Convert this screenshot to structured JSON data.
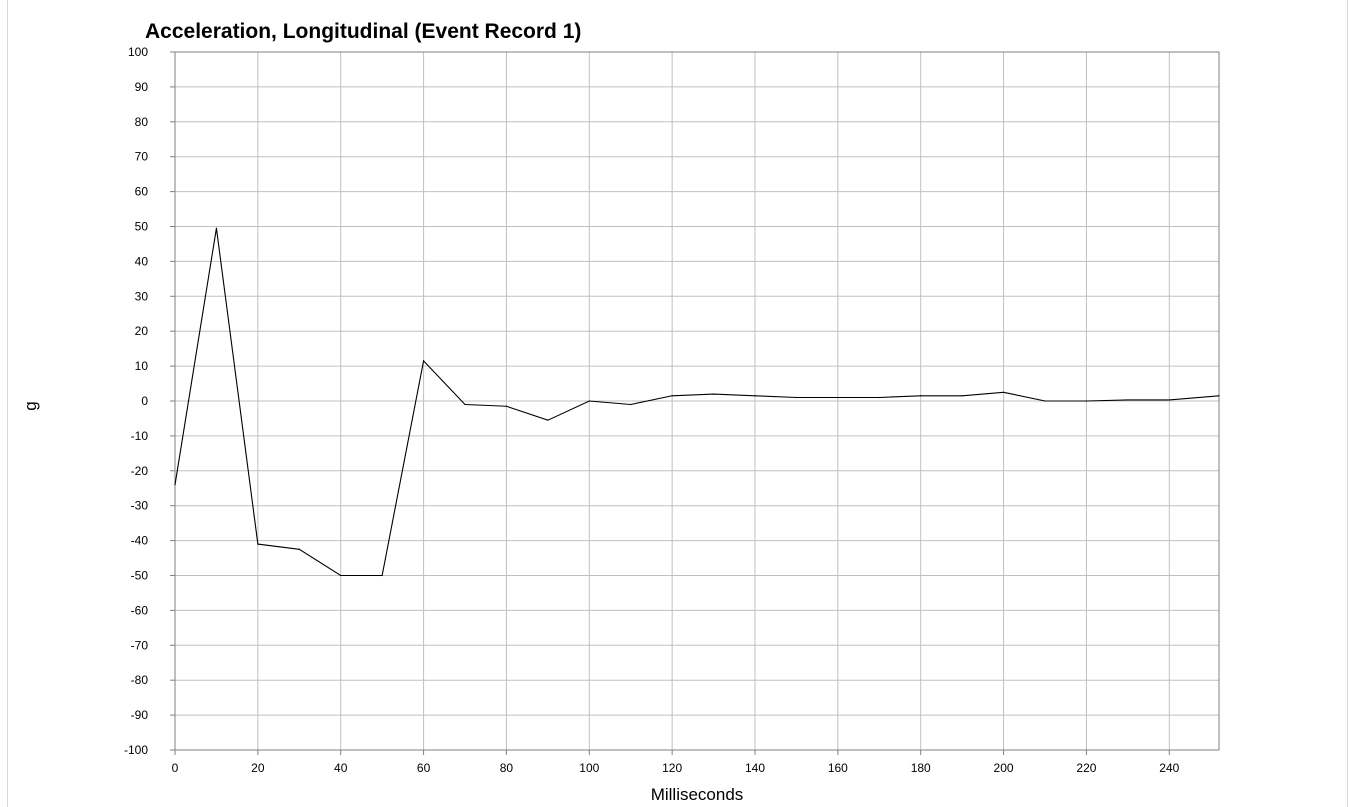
{
  "chart_data": {
    "type": "line",
    "title": "Acceleration, Longitudinal (Event Record 1)",
    "xlabel": "Milliseconds",
    "ylabel": "g",
    "xlim": [
      0,
      252
    ],
    "ylim": [
      -100,
      100
    ],
    "x_ticks": [
      0,
      20,
      40,
      60,
      80,
      100,
      120,
      140,
      160,
      180,
      200,
      220,
      240
    ],
    "y_ticks": [
      100,
      90,
      80,
      70,
      60,
      50,
      40,
      30,
      20,
      10,
      0,
      -10,
      -20,
      -30,
      -40,
      -50,
      -60,
      -70,
      -80,
      -90,
      -100
    ],
    "grid": true,
    "legend": "none",
    "series": [
      {
        "color": "#000000",
        "x": [
          0,
          10,
          20,
          30,
          40,
          50,
          60,
          70,
          80,
          90,
          100,
          110,
          120,
          130,
          140,
          150,
          160,
          170,
          180,
          190,
          200,
          210,
          220,
          230,
          240,
          252
        ],
        "y": [
          -24,
          49.5,
          -41,
          -42.5,
          -50,
          -50,
          11.5,
          -1,
          -1.5,
          -5.5,
          0,
          -1,
          1.5,
          2,
          1.5,
          1,
          1,
          1,
          1.5,
          1.5,
          2.5,
          0,
          0,
          0.3,
          0.3,
          1.5
        ]
      }
    ],
    "colors": {
      "grid": "#c0c0c0",
      "line": "#000000",
      "axis": "#808080"
    }
  }
}
